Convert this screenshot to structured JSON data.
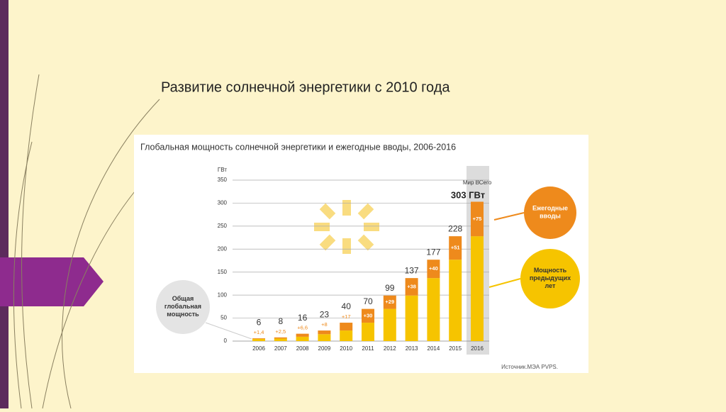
{
  "slide_title": "Развитие солнечной энергетики с 2010 года",
  "chart_data": {
    "type": "stacked_bar",
    "title": "Глобальная мощность солнечной энергетики и ежегодные вводы, 2006-2016",
    "y_label": "ГВт",
    "categories": [
      "2006",
      "2007",
      "2008",
      "2009",
      "2010",
      "2011",
      "2012",
      "2013",
      "2014",
      "2015",
      "2016"
    ],
    "series": [
      {
        "name": "Мощность предыдущих лет",
        "color": "#f6c400",
        "values": [
          4.6,
          5.5,
          9.4,
          15,
          23,
          40,
          70,
          99,
          137,
          177,
          228
        ]
      },
      {
        "name": "Ежегодные вводы",
        "color": "#ee8a1c",
        "values": [
          1.4,
          2.5,
          6.6,
          8,
          17,
          30,
          29,
          38,
          40,
          51,
          75
        ],
        "value_labels": [
          "+1,4",
          "+2,5",
          "+6,6",
          "+8",
          "+17",
          "+30",
          "+29",
          "+38",
          "+40",
          "+51",
          "+75"
        ]
      }
    ],
    "totals": [
      6,
      8,
      16,
      23,
      40,
      70,
      99,
      137,
      177,
      228,
      303
    ],
    "ylim": [
      0,
      350
    ],
    "yticks": [
      0,
      50,
      100,
      150,
      200,
      250,
      300,
      350
    ],
    "grid": true,
    "annotations": {
      "world_caption": "Мир ВСего",
      "world_total": "303 ГВт",
      "total_caption": "Общая глобальная мощность"
    },
    "source": "Источник.МЭА PVPS."
  }
}
